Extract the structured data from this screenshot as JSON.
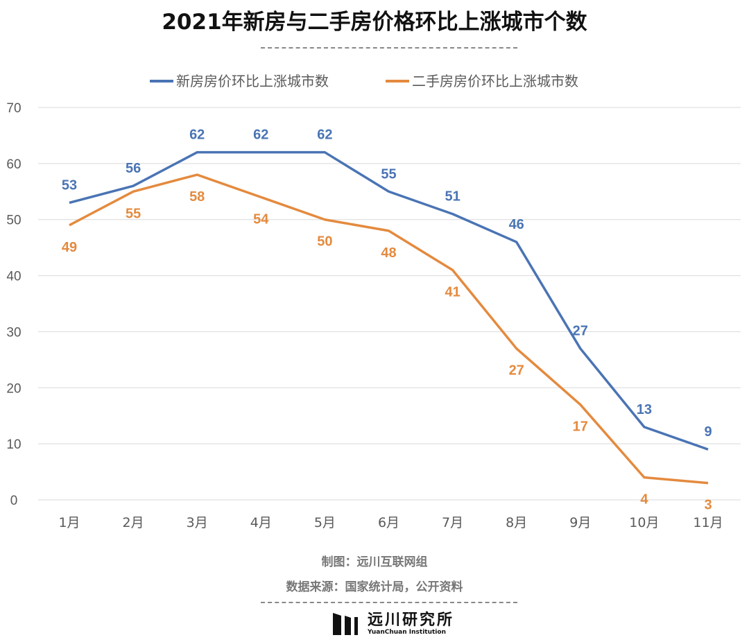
{
  "chart_data": {
    "type": "line",
    "title": "2021年新房与二手房价格环比上涨城市个数",
    "categories": [
      "1月",
      "2月",
      "3月",
      "4月",
      "5月",
      "6月",
      "7月",
      "8月",
      "9月",
      "10月",
      "11月"
    ],
    "series": [
      {
        "name": "新房房价环比上涨城市数",
        "color": "#4a74b4",
        "values": [
          53,
          56,
          62,
          62,
          62,
          55,
          51,
          46,
          27,
          13,
          9
        ]
      },
      {
        "name": "二手房房价环比上涨城市数",
        "color": "#e48a3e",
        "values": [
          49,
          55,
          58,
          54,
          50,
          48,
          41,
          27,
          17,
          4,
          3
        ]
      }
    ],
    "ylim": [
      0,
      70
    ],
    "yticks": [
      0,
      10,
      20,
      30,
      40,
      50,
      60,
      70
    ],
    "grid": true,
    "legend": "top",
    "data_labels": true
  },
  "footer": {
    "credit": "制图：远川互联网组",
    "source": "数据来源：国家统计局，公开资料",
    "logo_cn": "远川研究所",
    "logo_en": "YuanChuan Institution"
  }
}
